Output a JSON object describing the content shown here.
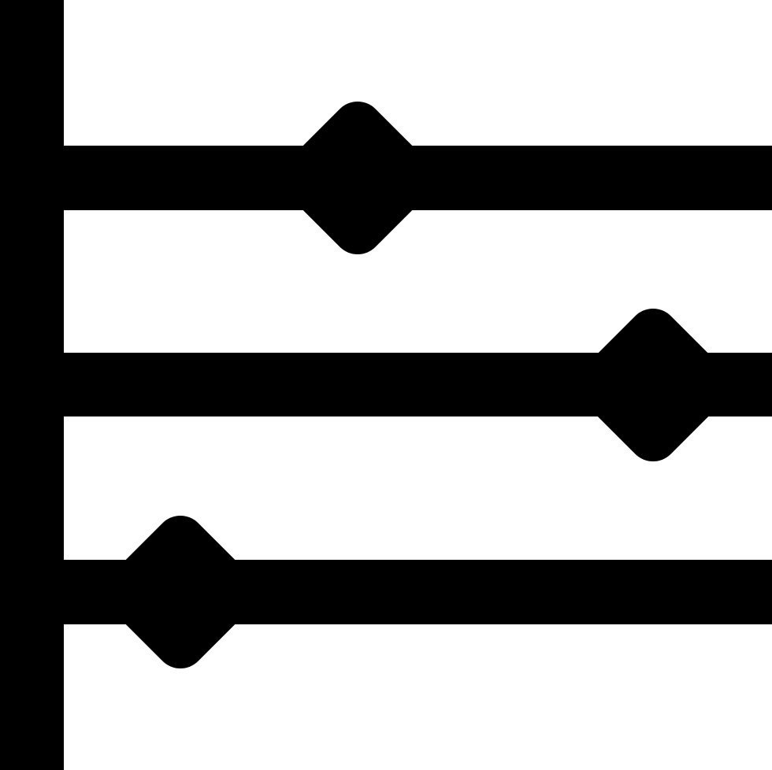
{
  "icon": {
    "name": "timeline-sliders-icon",
    "color": "#000000",
    "background": "#ffffff"
  }
}
